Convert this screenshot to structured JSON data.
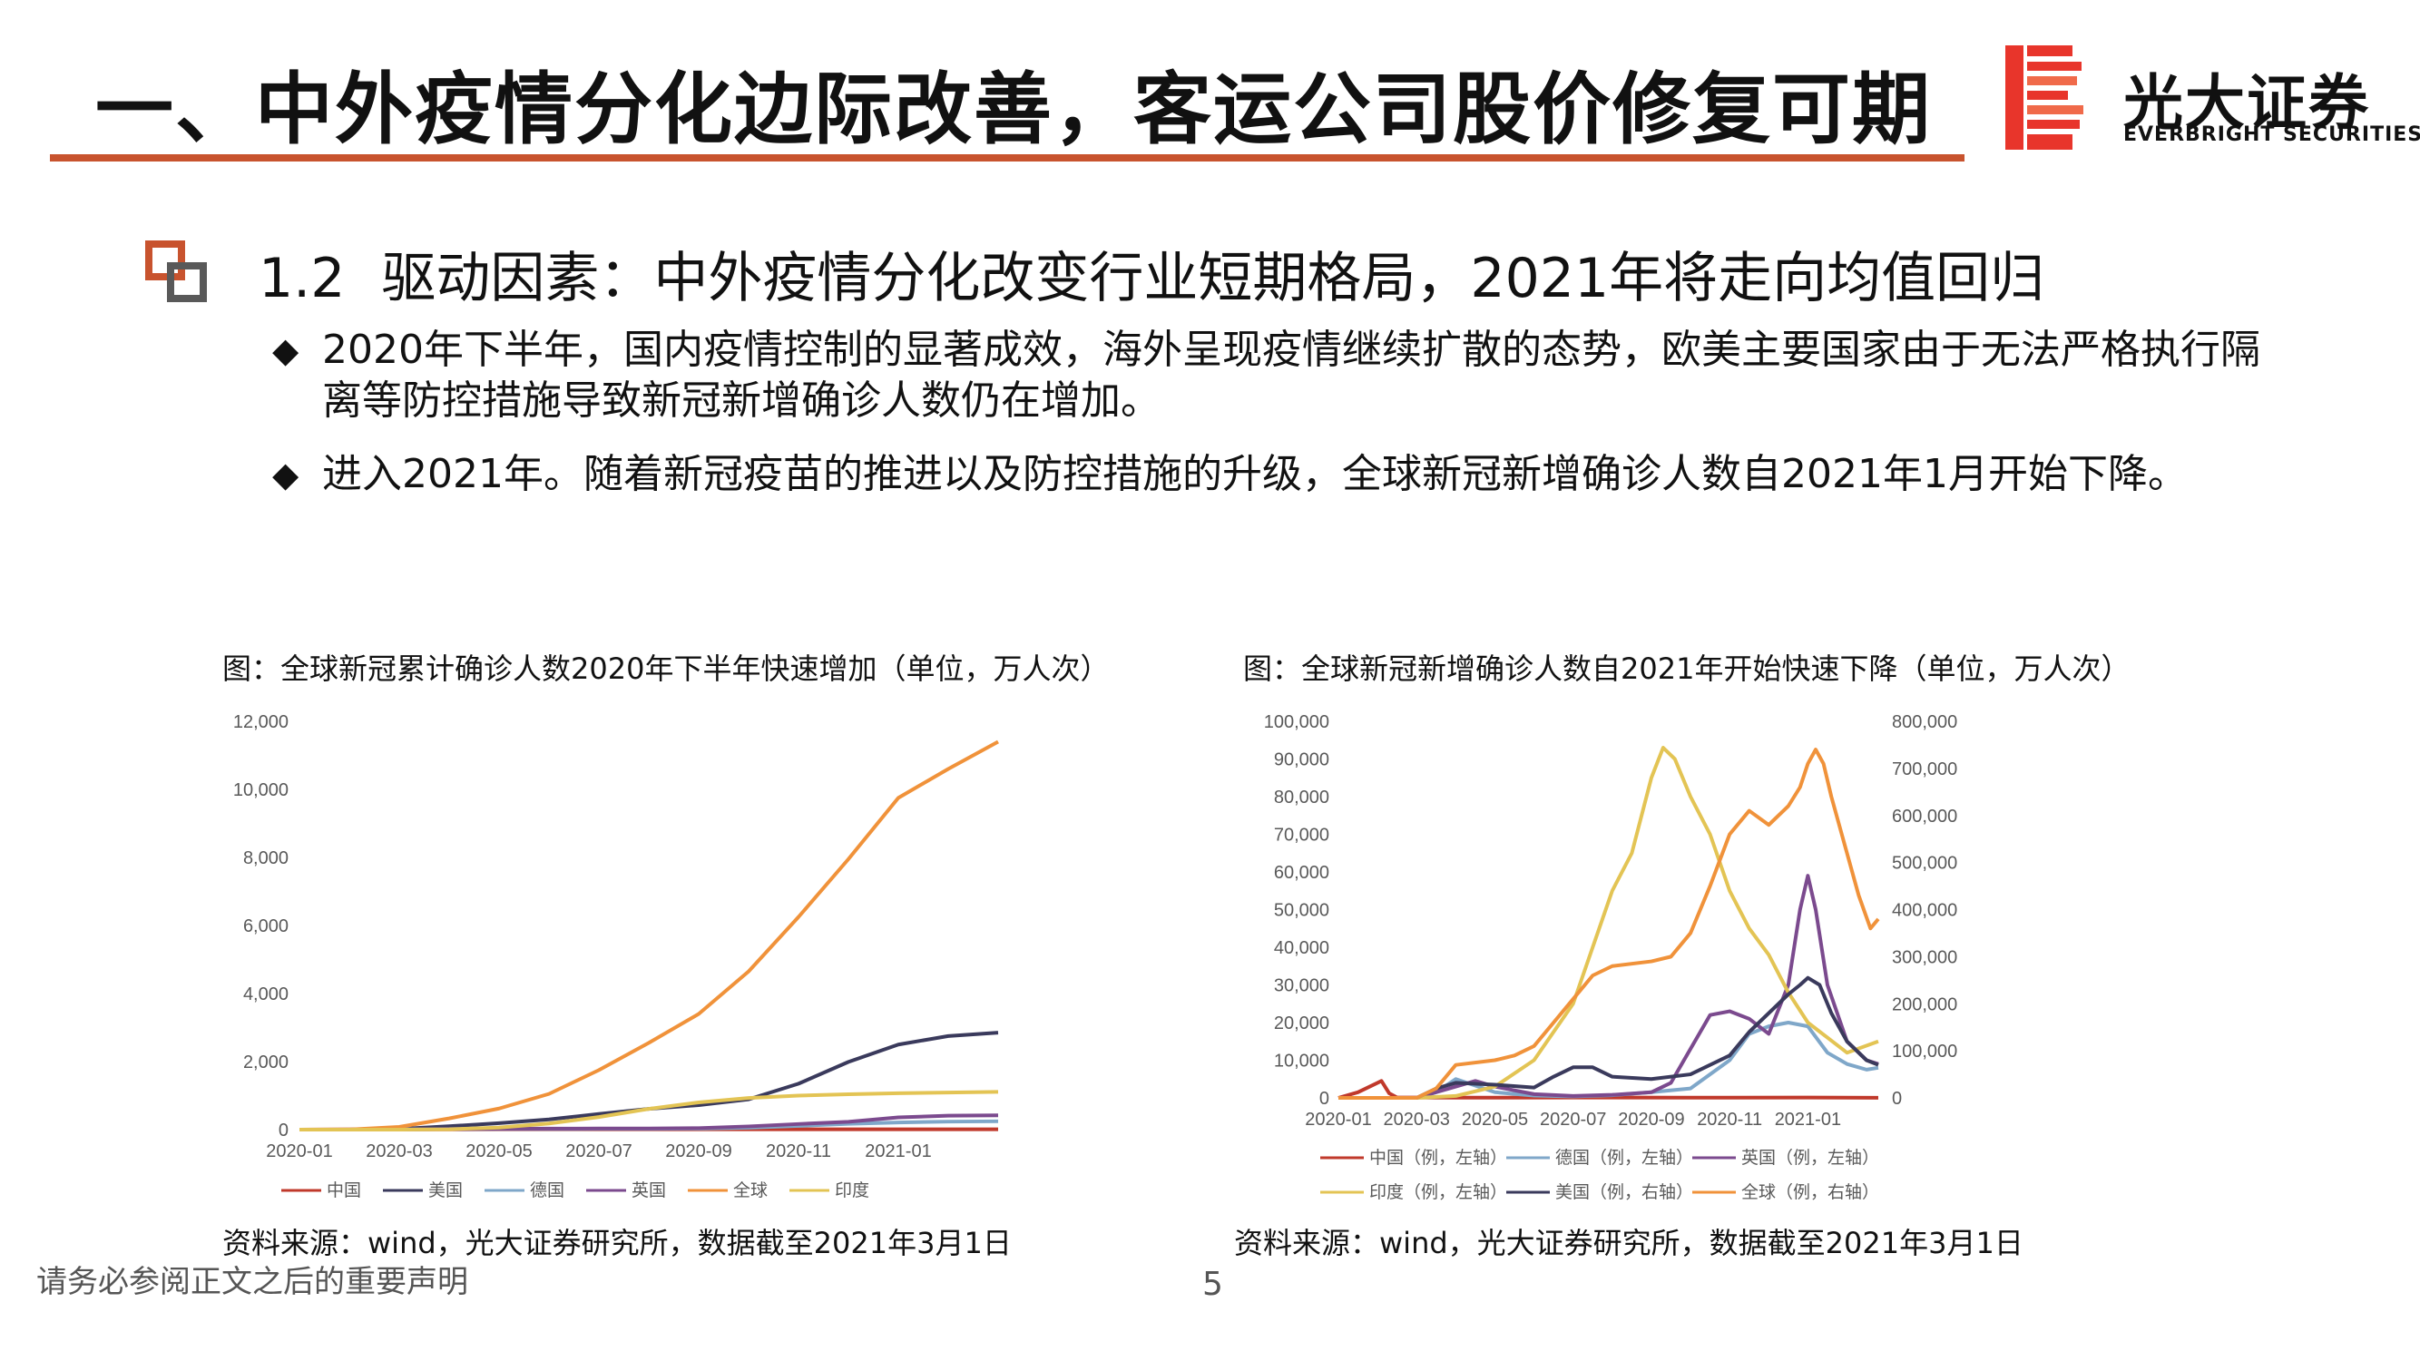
{
  "header": {
    "title": "一、中外疫情分化边际改善，客运公司股价修复可期",
    "logo_cn": "光大证券",
    "logo_en": "EVERBRIGHT SECURITIES",
    "accent_color": "#c8532e",
    "logo_color": "#e8352b"
  },
  "section": {
    "number": "1.2",
    "heading": "驱动因素：中外疫情分化改变行业短期格局，2021年将走向均值回归"
  },
  "bullets": [
    {
      "marker": "◆",
      "text": "2020年下半年，国内疫情控制的显著成效，海外呈现疫情继续扩散的态势，欧美主要国家由于无法严格执行隔离等防控措施导致新冠新增确诊人数仍在增加。"
    },
    {
      "marker": "◆",
      "text": "进入2021年。随着新冠疫苗的推进以及防控措施的升级，全球新冠新增确诊人数自2021年1月开始下降。"
    }
  ],
  "chart_data": [
    {
      "type": "line",
      "title": "图：全球新冠累计确诊人数2020年下半年快速增加（单位，万人次）",
      "source": "资料来源：wind，光大证券研究所，数据截至2021年3月1日",
      "x_ticks": [
        "2020-01",
        "2020-03",
        "2020-05",
        "2020-07",
        "2020-09",
        "2020-11",
        "2021-01"
      ],
      "y_ticks": [
        "0",
        "2,000",
        "4,000",
        "6,000",
        "8,000",
        "10,000",
        "12,000"
      ],
      "ylim": [
        0,
        12000
      ],
      "x": [
        0,
        1,
        2,
        3,
        4,
        5,
        6,
        7,
        8,
        9,
        10,
        11,
        12,
        13,
        14
      ],
      "x_note_units": "months since 2020-01 start are tick positions only",
      "series": [
        {
          "name": "中国",
          "color": "#c0392b",
          "values": [
            0,
            8,
            8,
            8,
            9,
            9,
            9,
            9,
            9,
            9,
            9,
            9,
            10,
            10,
            10
          ]
        },
        {
          "name": "美国",
          "color": "#3a3a5c",
          "values": [
            0,
            0,
            20,
            100,
            190,
            300,
            460,
            610,
            720,
            890,
            1350,
            1990,
            2500,
            2750,
            2850
          ]
        },
        {
          "name": "德国",
          "color": "#7fa7c9",
          "values": [
            0,
            0,
            10,
            17,
            19,
            20,
            22,
            25,
            30,
            55,
            110,
            170,
            210,
            235,
            245
          ]
        },
        {
          "name": "英国",
          "color": "#7b4a8e",
          "values": [
            0,
            0,
            5,
            18,
            26,
            30,
            32,
            35,
            45,
            95,
            165,
            230,
            360,
            410,
            420
          ]
        },
        {
          "name": "全球",
          "color": "#f0923a",
          "values": [
            0,
            5,
            80,
            330,
            620,
            1050,
            1750,
            2550,
            3400,
            4650,
            6250,
            7950,
            9750,
            10600,
            11400
          ]
        },
        {
          "name": "印度",
          "color": "#e3c454",
          "values": [
            0,
            0,
            0,
            10,
            60,
            180,
            370,
            610,
            800,
            930,
            1000,
            1040,
            1070,
            1090,
            1110
          ]
        }
      ]
    },
    {
      "type": "line",
      "title": "图：全球新冠新增确诊人数自2021年开始快速下降（单位，万人次）",
      "source": "资料来源：wind，光大证券研究所，数据截至2021年3月1日",
      "x_ticks": [
        "2020-01",
        "2020-03",
        "2020-05",
        "2020-07",
        "2020-09",
        "2020-11",
        "2021-01"
      ],
      "y_left_ticks": [
        "0",
        "10,000",
        "20,000",
        "30,000",
        "40,000",
        "50,000",
        "60,000",
        "70,000",
        "80,000",
        "90,000",
        "100,000"
      ],
      "y_right_ticks": [
        "0",
        "100,000",
        "200,000",
        "300,000",
        "400,000",
        "500,000",
        "600,000",
        "700,000",
        "800,000"
      ],
      "ylim_left": [
        0,
        100000
      ],
      "ylim_right": [
        0,
        800000
      ],
      "series": [
        {
          "name": "中国（例，左轴）",
          "axis": "left",
          "color": "#c0392b",
          "x": [
            0,
            0.5,
            1,
            1.1,
            1.3,
            1.5,
            2,
            3,
            6,
            9,
            12,
            13.8
          ],
          "values": [
            0,
            1500,
            4000,
            4500,
            1200,
            100,
            80,
            50,
            100,
            50,
            100,
            20
          ]
        },
        {
          "name": "德国（例，左轴）",
          "axis": "left",
          "color": "#7fa7c9",
          "x": [
            0,
            2,
            2.5,
            3,
            4,
            5,
            6,
            7,
            8,
            9,
            10,
            10.5,
            11,
            11.5,
            12,
            12.5,
            13,
            13.5,
            13.8
          ],
          "values": [
            0,
            0,
            1500,
            5000,
            1500,
            600,
            400,
            700,
            1500,
            2500,
            10000,
            17000,
            19000,
            20000,
            19000,
            12000,
            9000,
            7500,
            8000
          ]
        },
        {
          "name": "英国（例，左轴）",
          "axis": "left",
          "color": "#7b4a8e",
          "x": [
            0,
            2,
            3,
            3.5,
            4,
            5,
            6,
            7,
            8,
            8.5,
            9,
            9.5,
            10,
            10.5,
            11,
            11.5,
            11.8,
            12,
            12.2,
            12.5,
            13,
            13.5,
            13.8
          ],
          "values": [
            0,
            0,
            3000,
            4500,
            3000,
            1000,
            500,
            800,
            1500,
            4000,
            13000,
            22000,
            23000,
            21000,
            17000,
            30000,
            50000,
            59000,
            50000,
            30000,
            15000,
            10000,
            9000
          ]
        },
        {
          "name": "印度（例，左轴）",
          "axis": "left",
          "color": "#e3c454",
          "x": [
            0,
            2,
            3,
            4,
            5,
            6,
            6.5,
            7,
            7.5,
            8,
            8.3,
            8.6,
            9,
            9.5,
            10,
            10.5,
            11,
            11.5,
            12,
            12.5,
            13,
            13.8
          ],
          "values": [
            0,
            0,
            500,
            3000,
            10000,
            25000,
            40000,
            55000,
            65000,
            85000,
            93000,
            90000,
            80000,
            70000,
            55000,
            45000,
            38000,
            28000,
            20000,
            16000,
            12000,
            15000
          ]
        },
        {
          "name": "美国（例，右轴）",
          "axis": "right",
          "color": "#3a3a5c",
          "x": [
            0,
            2,
            2.5,
            3,
            4,
            5,
            5.5,
            6,
            6.5,
            7,
            8,
            9,
            9.5,
            10,
            10.5,
            11,
            11.5,
            11.8,
            12,
            12.3,
            12.6,
            13,
            13.5,
            13.8
          ],
          "values": [
            0,
            0,
            20000,
            32000,
            28000,
            22000,
            45000,
            65000,
            65000,
            45000,
            40000,
            50000,
            70000,
            90000,
            140000,
            180000,
            220000,
            240000,
            255000,
            240000,
            180000,
            120000,
            80000,
            70000
          ]
        },
        {
          "name": "全球（例，右轴）",
          "axis": "right",
          "color": "#f0923a",
          "x": [
            0,
            2,
            2.5,
            3,
            4,
            4.5,
            5,
            5.5,
            6,
            6.5,
            7,
            8,
            8.5,
            9,
            9.5,
            10,
            10.5,
            11,
            11.5,
            11.8,
            12,
            12.2,
            12.4,
            12.6,
            12.8,
            13,
            13.3,
            13.6,
            13.8
          ],
          "values": [
            0,
            0,
            20000,
            70000,
            80000,
            90000,
            110000,
            160000,
            210000,
            260000,
            280000,
            290000,
            300000,
            350000,
            450000,
            560000,
            610000,
            580000,
            620000,
            660000,
            710000,
            740000,
            710000,
            640000,
            580000,
            520000,
            430000,
            360000,
            380000
          ]
        }
      ]
    }
  ],
  "legend1": [
    "中国",
    "美国",
    "德国",
    "英国",
    "全球",
    "印度"
  ],
  "legend2_row1": [
    "中国（例，左轴）",
    "德国（例，左轴）",
    "英国（例，左轴）"
  ],
  "legend2_row2": [
    "印度（例，左轴）",
    "美国（例，右轴）",
    "全球（例，右轴）"
  ],
  "footer": {
    "disclaimer": "请务必参阅正文之后的重要声明",
    "page_number": "5"
  }
}
